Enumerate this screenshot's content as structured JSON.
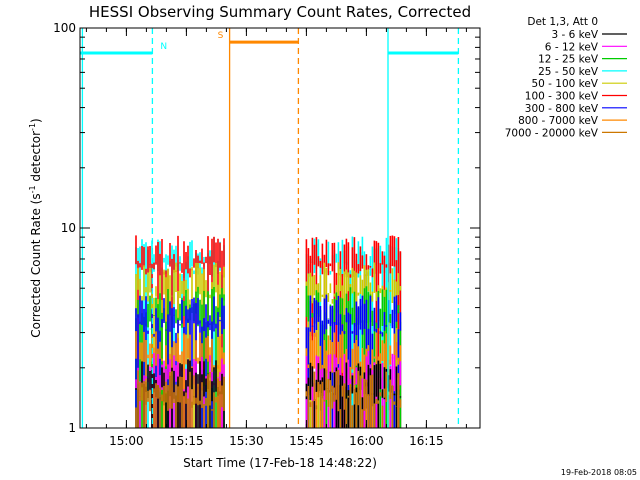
{
  "chart_data": {
    "type": "line",
    "title": "HESSI Observing Summary Count Rates, Corrected",
    "xlabel": "Start Time (17-Feb-18 14:48:22)",
    "ylabel": "Corrected Count Rate (s",
    "ylabel_sup1": "-1",
    "ylabel_mid": " detector",
    "ylabel_sup2": "-1",
    "ylabel_end": ")",
    "y_scale": "log",
    "ylim": [
      1,
      100
    ],
    "x_range_minutes": [
      0,
      100
    ],
    "x_ticks": [
      {
        "minute": 11.6,
        "label": "15:00"
      },
      {
        "minute": 26.6,
        "label": "15:15"
      },
      {
        "minute": 41.6,
        "label": "15:30"
      },
      {
        "minute": 56.6,
        "label": "15:45"
      },
      {
        "minute": 71.6,
        "label": "16:00"
      },
      {
        "minute": 86.6,
        "label": "16:15"
      }
    ],
    "y_ticks": [
      {
        "value": 1,
        "label": "1"
      },
      {
        "value": 10,
        "label": "10"
      },
      {
        "value": 100,
        "label": "100"
      }
    ],
    "legend_title": "Det 1,3, Att 0",
    "legend_placement": "right",
    "series": [
      {
        "name": "3 - 6 keV",
        "color": "#000000",
        "level": 1.8
      },
      {
        "name": "6 - 12 keV",
        "color": "#ff00ff",
        "level": 2.0
      },
      {
        "name": "12 - 25 keV",
        "color": "#00cc00",
        "level": 4.2
      },
      {
        "name": "25 - 50 keV",
        "color": "#00ffff",
        "level": 7.5
      },
      {
        "name": "50 - 100 keV",
        "color": "#cccc00",
        "level": 5.5
      },
      {
        "name": "100 - 300 keV",
        "color": "#ff0000",
        "level": 7.5
      },
      {
        "name": "300 - 800 keV",
        "color": "#0000ff",
        "level": 3.8
      },
      {
        "name": "800 - 7000 keV",
        "color": "#ff8800",
        "level": 2.5
      },
      {
        "name": "7000 - 20000 keV",
        "color": "#cc7700",
        "level": 1.6
      }
    ],
    "data_segments": [
      [
        14.0,
        36.3
      ],
      [
        56.6,
        80.4
      ]
    ],
    "flags": [
      {
        "label": "N",
        "color": "#00ffff",
        "start": 0,
        "end": 18.1,
        "level": 75
      },
      {
        "label": "S",
        "color": "#ff8800",
        "start": 37.4,
        "end": 54.6,
        "level": 85
      },
      {
        "label": "",
        "color": "#00ffff",
        "start": 77.0,
        "end": 94.6,
        "level": 75
      }
    ],
    "verticals": [
      {
        "minute": 0.6,
        "color": "#00ffff",
        "style": "solid"
      },
      {
        "minute": 18.1,
        "color": "#00ffff",
        "style": "dashed"
      },
      {
        "minute": 37.4,
        "color": "#ff8800",
        "style": "solid"
      },
      {
        "minute": 54.6,
        "color": "#ff8800",
        "style": "dashed"
      },
      {
        "minute": 77.0,
        "color": "#00ffff",
        "style": "solid"
      },
      {
        "minute": 94.6,
        "color": "#00ffff",
        "style": "dashed"
      }
    ]
  },
  "footer": {
    "timestamp": "19-Feb-2018 08:05"
  }
}
